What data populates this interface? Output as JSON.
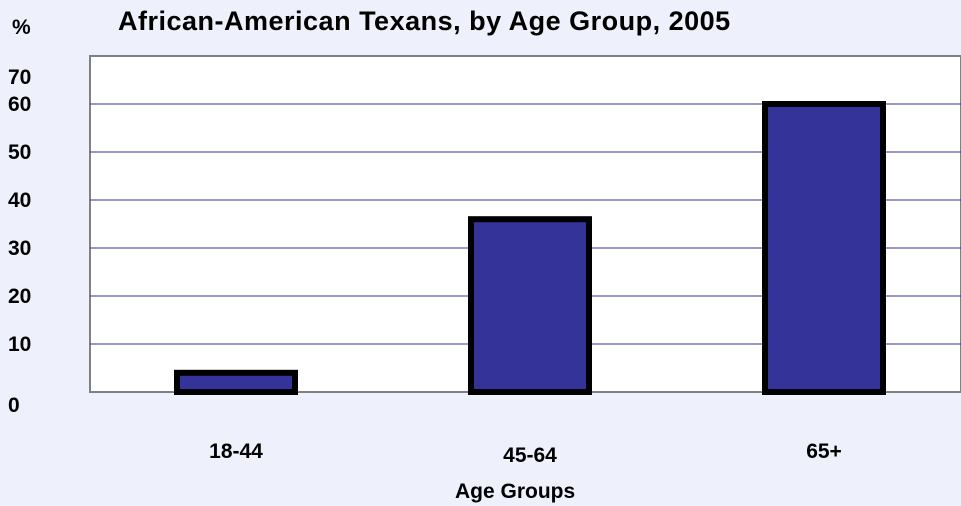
{
  "chart_data": {
    "type": "bar",
    "title": "African-American Texans, by Age Group, 2005",
    "ylabel": "%",
    "xlabel": "Age Groups",
    "categories": [
      "18-44",
      "45-64",
      "65+"
    ],
    "values": [
      4,
      36,
      60
    ],
    "ylim": [
      0,
      70
    ],
    "yticks": [
      0,
      10,
      20,
      30,
      40,
      50,
      60,
      70
    ],
    "grid": true,
    "colors": {
      "bar_fill": "#333399",
      "bar_stroke": "#000000",
      "gridline": "#333399",
      "plot_background": "#ffffff",
      "page_background": "#eef1fb"
    }
  }
}
